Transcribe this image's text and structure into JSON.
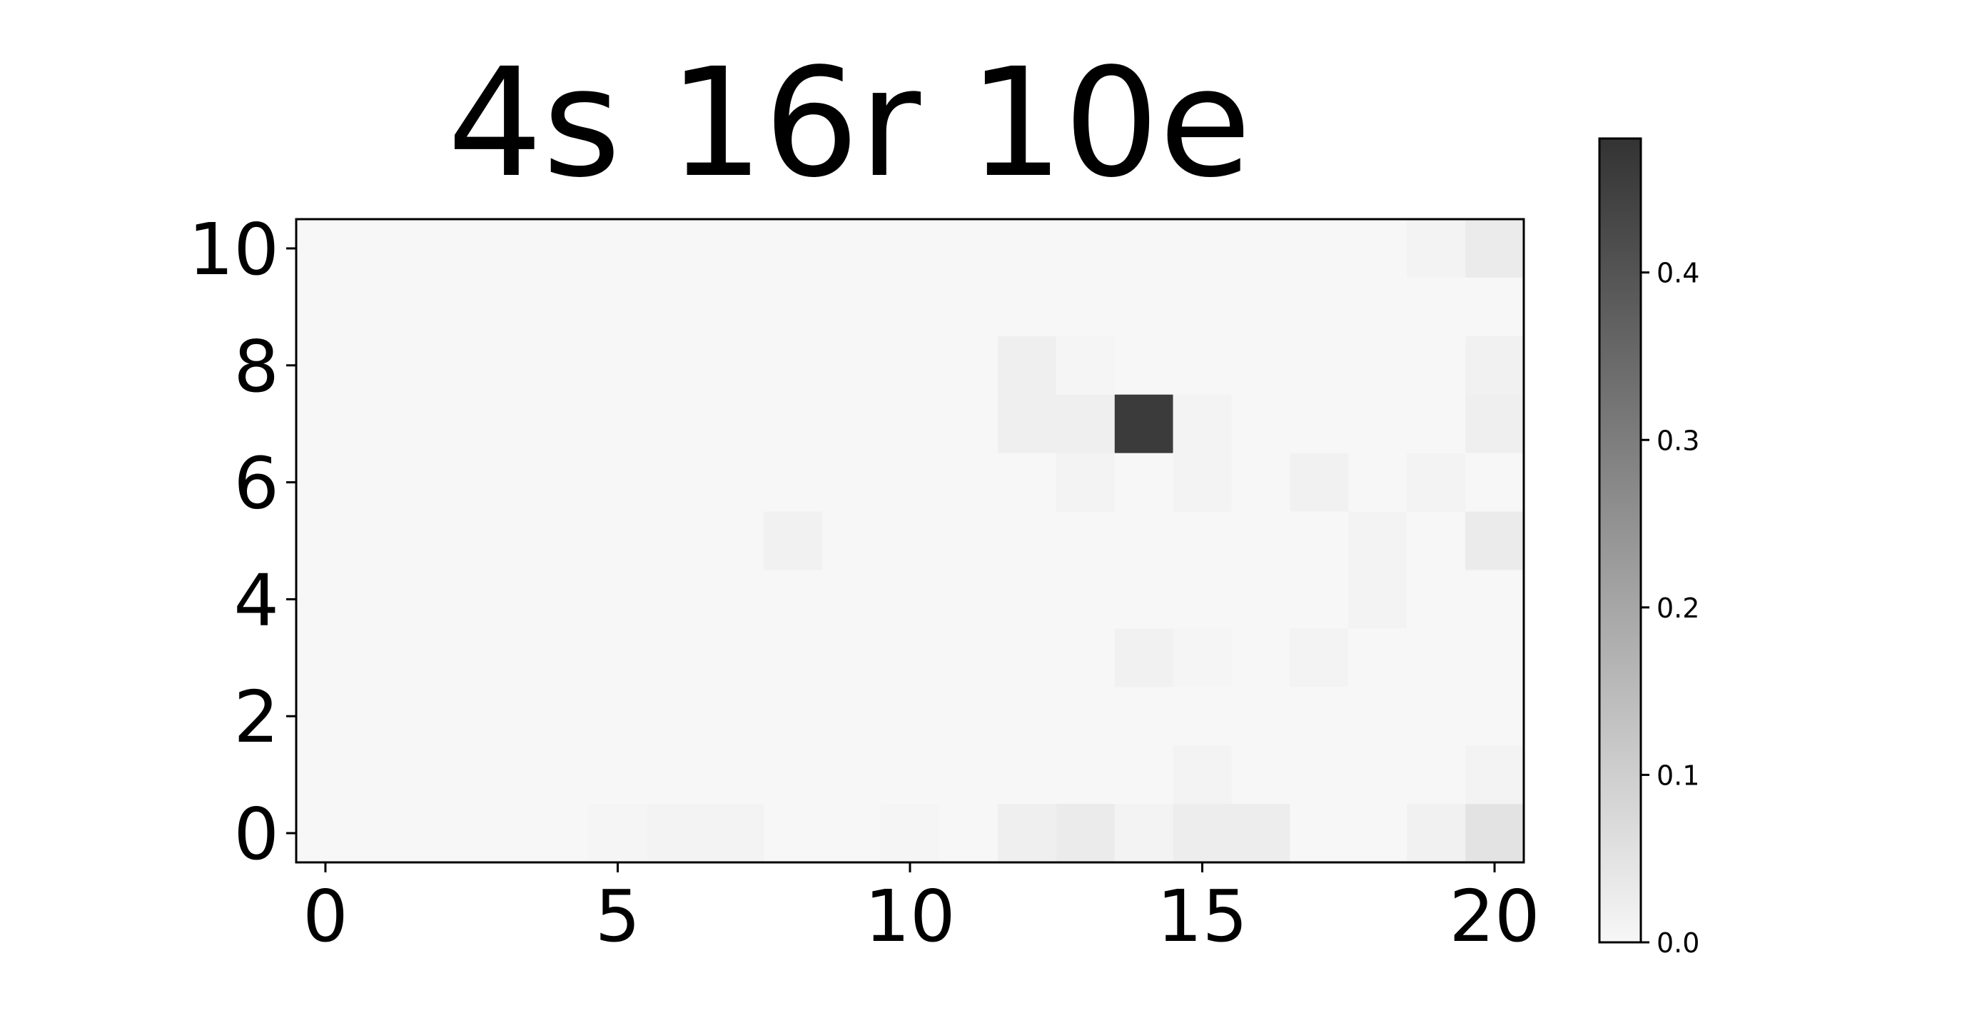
{
  "chart_data": {
    "type": "heatmap",
    "title": "4s 16r 10e",
    "colormap": "Greys",
    "xlim": [
      -0.5,
      20.5
    ],
    "ylim": [
      -0.5,
      10.5
    ],
    "xticks": [
      "0",
      "5",
      "10",
      "15",
      "20"
    ],
    "yticks": [
      "0",
      "2",
      "4",
      "6",
      "8",
      "10"
    ],
    "colorbar": {
      "min": 0.0,
      "max": 0.48,
      "ticks": [
        "0.0",
        "0.1",
        "0.2",
        "0.3",
        "0.4"
      ]
    },
    "background_value": 0.0,
    "cells": [
      {
        "x": 14,
        "y": 7,
        "value": 0.46
      },
      {
        "x": 20,
        "y": 0,
        "value": 0.05
      },
      {
        "x": 13,
        "y": 0,
        "value": 0.03
      },
      {
        "x": 15,
        "y": 0,
        "value": 0.025
      },
      {
        "x": 16,
        "y": 0,
        "value": 0.025
      },
      {
        "x": 12,
        "y": 0,
        "value": 0.02
      },
      {
        "x": 19,
        "y": 0,
        "value": 0.015
      },
      {
        "x": 6,
        "y": 0,
        "value": 0.01
      },
      {
        "x": 7,
        "y": 0,
        "value": 0.01
      },
      {
        "x": 5,
        "y": 0,
        "value": 0.005
      },
      {
        "x": 10,
        "y": 0,
        "value": 0.005
      },
      {
        "x": 14,
        "y": 0,
        "value": 0.01
      },
      {
        "x": 15,
        "y": 1,
        "value": 0.01
      },
      {
        "x": 20,
        "y": 1,
        "value": 0.01
      },
      {
        "x": 14,
        "y": 3,
        "value": 0.015
      },
      {
        "x": 17,
        "y": 3,
        "value": 0.01
      },
      {
        "x": 15,
        "y": 3,
        "value": 0.005
      },
      {
        "x": 18,
        "y": 4,
        "value": 0.01
      },
      {
        "x": 8,
        "y": 5,
        "value": 0.015
      },
      {
        "x": 20,
        "y": 5,
        "value": 0.03
      },
      {
        "x": 18,
        "y": 5,
        "value": 0.01
      },
      {
        "x": 13,
        "y": 6,
        "value": 0.01
      },
      {
        "x": 15,
        "y": 6,
        "value": 0.01
      },
      {
        "x": 17,
        "y": 6,
        "value": 0.015
      },
      {
        "x": 19,
        "y": 6,
        "value": 0.01
      },
      {
        "x": 12,
        "y": 7,
        "value": 0.02
      },
      {
        "x": 13,
        "y": 7,
        "value": 0.02
      },
      {
        "x": 15,
        "y": 7,
        "value": 0.01
      },
      {
        "x": 20,
        "y": 7,
        "value": 0.02
      },
      {
        "x": 12,
        "y": 8,
        "value": 0.02
      },
      {
        "x": 13,
        "y": 8,
        "value": 0.005
      },
      {
        "x": 20,
        "y": 8,
        "value": 0.015
      },
      {
        "x": 20,
        "y": 10,
        "value": 0.03
      },
      {
        "x": 19,
        "y": 10,
        "value": 0.01
      }
    ]
  }
}
